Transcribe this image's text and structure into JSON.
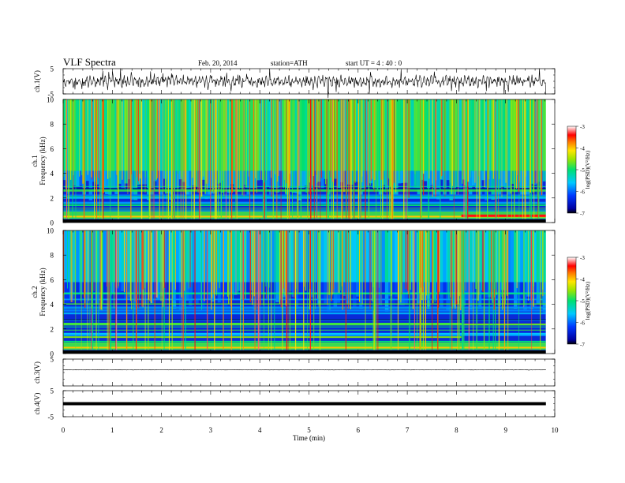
{
  "header": {
    "title": "VLF  Spectra",
    "date": "Feb. 20, 2014",
    "station": "station=ATH",
    "start": "start  UT  =   4  : 40 : 0"
  },
  "chart_data": [
    {
      "type": "line",
      "panel": "ch1-waveform",
      "ylabel": "ch.1(V)",
      "ylim": [
        -5,
        5
      ],
      "yticks": [
        "5",
        "-5"
      ]
    },
    {
      "type": "heatmap",
      "panel": "ch1-spectrogram",
      "ylabel_line1": "ch.1",
      "ylabel_line2": "Frequency  (kHz)",
      "ylim": [
        0,
        10
      ],
      "yticks": [
        "0",
        "2",
        "4",
        "6",
        "8",
        "10"
      ],
      "colorbar": {
        "label": "log(PSD)(V²/Hz)",
        "ticks": [
          "-3",
          "-4",
          "-5",
          "-6",
          "-7"
        ],
        "range": [
          -7,
          -3
        ]
      }
    },
    {
      "type": "heatmap",
      "panel": "ch2-spectrogram",
      "ylabel_line1": "ch.2",
      "ylabel_line2": "Frequency  (kHz)",
      "ylim": [
        0,
        10
      ],
      "yticks": [
        "0",
        "2",
        "4",
        "6",
        "8",
        "10"
      ],
      "colorbar": {
        "label": "log(PSD)(V²/Hz)",
        "ticks": [
          "-3",
          "-4",
          "-5",
          "-6",
          "-7"
        ],
        "range": [
          -7,
          -3
        ]
      }
    },
    {
      "type": "line",
      "panel": "ch3-waveform",
      "ylabel": "ch.3(V)",
      "ylim": [
        -5,
        5
      ],
      "yticks": [
        "5"
      ]
    },
    {
      "type": "line",
      "panel": "ch4-waveform",
      "ylabel": "ch.4(V)",
      "ylim": [
        -5,
        5
      ],
      "yticks": [
        "5",
        "-5"
      ]
    }
  ],
  "xaxis": {
    "label": "Time  (min)",
    "range": [
      0,
      10
    ],
    "ticks": [
      "0",
      "1",
      "2",
      "3",
      "4",
      "5",
      "6",
      "7",
      "8",
      "9",
      "10"
    ],
    "data_end": 9.82
  }
}
